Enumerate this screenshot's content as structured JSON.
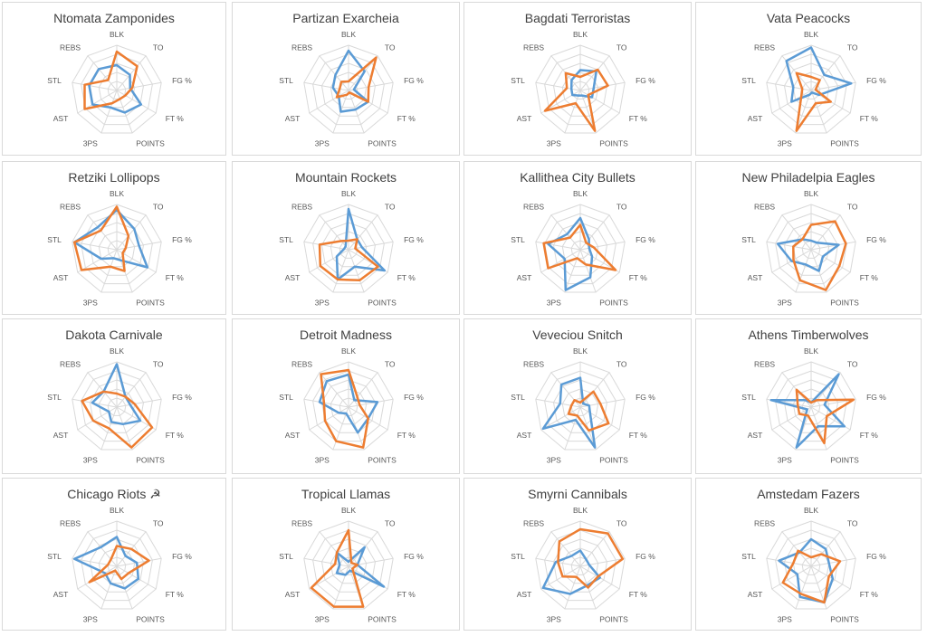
{
  "colors": {
    "series_a": "#5b9bd5",
    "series_b": "#ed7d31",
    "grid": "#d9d9d9"
  },
  "chart_data": [
    {
      "type": "radar",
      "title": "Ntomata Zamponides",
      "axes": [
        "BLK",
        "TO",
        "FG %",
        "FT %",
        "POINTS",
        "3PS",
        "AST",
        "STL",
        "REBS"
      ],
      "series": [
        {
          "values": [
            0.56,
            0.45,
            0.3,
            0.62,
            0.52,
            0.4,
            0.62,
            0.62,
            0.62
          ]
        },
        {
          "values": [
            0.86,
            0.7,
            0.35,
            0.22,
            0.2,
            0.3,
            0.82,
            0.72,
            0.3
          ]
        }
      ]
    },
    {
      "type": "radar",
      "title": "Partizan Exarcheia",
      "axes": [
        "BLK",
        "TO",
        "FG %",
        "FT %",
        "POINTS",
        "3PS",
        "AST",
        "STL",
        "REBS"
      ],
      "series": [
        {
          "values": [
            0.88,
            0.55,
            0.12,
            0.5,
            0.45,
            0.5,
            0.25,
            0.35,
            0.45
          ]
        },
        {
          "values": [
            0.2,
            0.95,
            0.45,
            0.5,
            0.05,
            0.1,
            0.3,
            0.2,
            0.25
          ]
        }
      ]
    },
    {
      "type": "radar",
      "title": "Bagdati Terroristas",
      "axes": [
        "BLK",
        "TO",
        "FG %",
        "FT %",
        "POINTS",
        "3PS",
        "AST",
        "STL",
        "REBS"
      ],
      "series": [
        {
          "values": [
            0.45,
            0.55,
            0.3,
            0.3,
            0.12,
            0.12,
            0.2,
            0.2,
            0.3
          ]
        },
        {
          "values": [
            0.3,
            0.6,
            0.62,
            0.2,
            0.95,
            0.3,
            0.9,
            0.3,
            0.5
          ]
        }
      ]
    },
    {
      "type": "radar",
      "title": "Vata Peacocks",
      "axes": [
        "BLK",
        "TO",
        "FG %",
        "FT %",
        "POINTS",
        "3PS",
        "AST",
        "STL",
        "REBS"
      ],
      "series": [
        {
          "values": [
            0.95,
            0.45,
            0.9,
            0.2,
            0.05,
            0.1,
            0.5,
            0.4,
            0.85
          ]
        },
        {
          "values": [
            0.3,
            0.3,
            0.1,
            0.5,
            0.3,
            0.95,
            0.25,
            0.2,
            0.5
          ]
        }
      ]
    },
    {
      "type": "radar",
      "title": "Retziki Lollipops",
      "axes": [
        "BLK",
        "TO",
        "FG %",
        "FT %",
        "POINTS",
        "3PS",
        "AST",
        "STL",
        "REBS"
      ],
      "series": [
        {
          "values": [
            0.88,
            0.6,
            0.5,
            0.78,
            0.25,
            0.2,
            0.4,
            0.95,
            0.65
          ]
        },
        {
          "values": [
            0.95,
            0.4,
            0.2,
            0.15,
            0.5,
            0.4,
            0.9,
            0.95,
            0.55
          ]
        }
      ]
    },
    {
      "type": "radar",
      "title": "Mountain Rockets",
      "axes": [
        "BLK",
        "TO",
        "FG %",
        "FT %",
        "POINTS",
        "3PS",
        "AST",
        "STL",
        "REBS"
      ],
      "series": [
        {
          "values": [
            0.9,
            0.3,
            0.3,
            0.92,
            0.4,
            0.7,
            0.3,
            0.1,
            0.1
          ]
        },
        {
          "values": [
            0.2,
            0.3,
            0.15,
            0.75,
            0.72,
            0.7,
            0.72,
            0.65,
            0.25
          ]
        }
      ]
    },
    {
      "type": "radar",
      "title": "Kallithea City Bullets",
      "axes": [
        "BLK",
        "TO",
        "FG %",
        "FT %",
        "POINTS",
        "3PS",
        "AST",
        "STL",
        "REBS"
      ],
      "series": [
        {
          "values": [
            0.7,
            0.3,
            0.2,
            0.3,
            0.65,
            0.95,
            0.4,
            0.72,
            0.45
          ]
        },
        {
          "values": [
            0.55,
            0.2,
            0.3,
            0.9,
            0.35,
            0.2,
            0.82,
            0.82,
            0.35
          ]
        }
      ]
    },
    {
      "type": "radar",
      "title": "New Philadelpia Eagles",
      "axes": [
        "BLK",
        "TO",
        "FG %",
        "FT %",
        "POINTS",
        "3PS",
        "AST",
        "STL",
        "REBS"
      ],
      "series": [
        {
          "values": [
            0.2,
            0.2,
            0.62,
            0.3,
            0.5,
            0.35,
            0.5,
            0.75,
            0.3
          ]
        },
        {
          "values": [
            0.55,
            0.82,
            0.78,
            0.72,
            0.95,
            0.72,
            0.45,
            0.4,
            0.3
          ]
        }
      ]
    },
    {
      "type": "radar",
      "title": "Dakota Carnivale",
      "axes": [
        "BLK",
        "TO",
        "FG %",
        "FT %",
        "POINTS",
        "3PS",
        "AST",
        "STL",
        "REBS"
      ],
      "series": [
        {
          "values": [
            0.95,
            0.3,
            0.3,
            0.6,
            0.4,
            0.35,
            0.2,
            0.55,
            0.45
          ]
        },
        {
          "values": [
            0.3,
            0.3,
            0.4,
            0.9,
            0.95,
            0.5,
            0.6,
            0.78,
            0.45
          ]
        }
      ]
    },
    {
      "type": "radar",
      "title": "Detroit Madness",
      "axes": [
        "BLK",
        "TO",
        "FG %",
        "FT %",
        "POINTS",
        "3PS",
        "AST",
        "STL",
        "REBS"
      ],
      "series": [
        {
          "values": [
            0.72,
            0.2,
            0.65,
            0.5,
            0.6,
            0.15,
            0.25,
            0.65,
            0.75
          ]
        },
        {
          "values": [
            0.82,
            0.3,
            0.25,
            0.5,
            0.95,
            0.8,
            0.6,
            0.55,
            0.95
          ]
        }
      ]
    },
    {
      "type": "radar",
      "title": "Veveciou Snitch",
      "axes": [
        "BLK",
        "TO",
        "FG %",
        "FT %",
        "POINTS",
        "3PS",
        "AST",
        "STL",
        "REBS"
      ],
      "series": [
        {
          "values": [
            0.65,
            0.1,
            0.2,
            0.25,
            0.95,
            0.3,
            0.95,
            0.45,
            0.65
          ]
        },
        {
          "values": [
            0.1,
            0.45,
            0.45,
            0.72,
            0.55,
            0.2,
            0.3,
            0.2,
            0.2
          ]
        }
      ]
    },
    {
      "type": "radar",
      "title": "Athens Timberwolves",
      "axes": [
        "BLK",
        "TO",
        "FG %",
        "FT %",
        "POINTS",
        "3PS",
        "AST",
        "STL",
        "REBS"
      ],
      "series": [
        {
          "values": [
            0.1,
            0.95,
            0.3,
            0.85,
            0.45,
            0.95,
            0.1,
            0.9,
            0.2
          ]
        },
        {
          "values": [
            0.1,
            0.2,
            0.95,
            0.4,
            0.85,
            0.2,
            0.3,
            0.3,
            0.5
          ]
        }
      ]
    },
    {
      "type": "radar",
      "title": "Chicago Riots ☭",
      "axes": [
        "BLK",
        "TO",
        "FG %",
        "FT %",
        "POINTS",
        "3PS",
        "AST",
        "STL",
        "REBS"
      ],
      "series": [
        {
          "values": [
            0.65,
            0.3,
            0.45,
            0.55,
            0.52,
            0.4,
            0.3,
            0.95,
            0.55
          ]
        },
        {
          "values": [
            0.45,
            0.5,
            0.72,
            0.3,
            0.3,
            0.1,
            0.7,
            0.2,
            0.2
          ]
        }
      ]
    },
    {
      "type": "radar",
      "title": "Tropical Llamas",
      "axes": [
        "BLK",
        "TO",
        "FG %",
        "FT %",
        "POINTS",
        "3PS",
        "AST",
        "STL",
        "REBS"
      ],
      "series": [
        {
          "values": [
            0.1,
            0.55,
            0.2,
            0.9,
            0.1,
            0.2,
            0.3,
            0.2,
            0.4
          ]
        },
        {
          "values": [
            0.8,
            0.1,
            0.2,
            0.1,
            0.95,
            0.95,
            0.95,
            0.3,
            0.4
          ]
        }
      ]
    },
    {
      "type": "radar",
      "title": "Smyrni Cannibals",
      "axes": [
        "BLK",
        "TO",
        "FG %",
        "FT %",
        "POINTS",
        "3PS",
        "AST",
        "STL",
        "REBS"
      ],
      "series": [
        {
          "values": [
            0.35,
            0.2,
            0.2,
            0.5,
            0.45,
            0.65,
            0.95,
            0.55,
            0.3
          ]
        },
        {
          "values": [
            0.82,
            0.95,
            0.95,
            0.45,
            0.5,
            0.25,
            0.45,
            0.5,
            0.72
          ]
        }
      ]
    },
    {
      "type": "radar",
      "title": "Amstedam Fazers",
      "axes": [
        "BLK",
        "TO",
        "FG %",
        "FT %",
        "POINTS",
        "3PS",
        "AST",
        "STL",
        "REBS"
      ],
      "series": [
        {
          "values": [
            0.6,
            0.5,
            0.4,
            0.55,
            0.85,
            0.72,
            0.35,
            0.72,
            0.4
          ]
        },
        {
          "values": [
            0.2,
            0.35,
            0.65,
            0.45,
            0.85,
            0.65,
            0.72,
            0.4,
            0.45
          ]
        }
      ]
    }
  ]
}
